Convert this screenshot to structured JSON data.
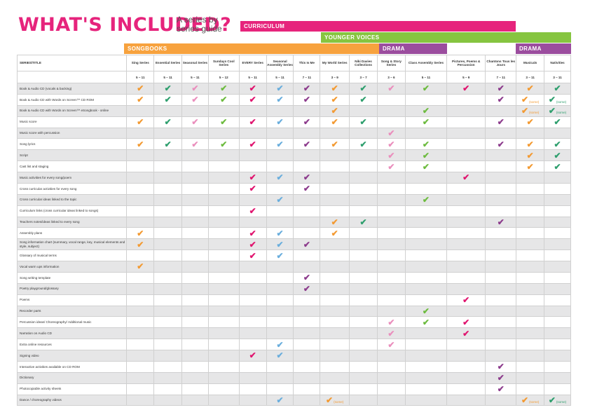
{
  "title": "WHAT'S INCLUDED?",
  "subtitle": "A series by series guide",
  "bands": {
    "curriculum": "CURRICULUM",
    "younger_voices": "YOUNGER VOICES",
    "songbooks": "SONGBOOKS",
    "drama1": "DRAMA",
    "drama2": "DRAMA"
  },
  "colors": {
    "pink": "#e6247c",
    "green": "#86c540",
    "orange": "#f7a23e",
    "purple": "#9b4d9e",
    "tick_orange": "#f39a32",
    "tick_green": "#2f9f6e",
    "tick_pink": "#ea8fbd",
    "tick_lightgreen": "#6dbb3f",
    "tick_magenta": "#e0156f",
    "tick_blue": "#6aaedd",
    "tick_purple": "#8c3b8c"
  },
  "tick_symbol": "✔",
  "series_title_header": "SERIES/TITLE",
  "columns": [
    {
      "name": "Sing Series",
      "age": "5 – 11",
      "tick": "tick_orange"
    },
    {
      "name": "Essential Series",
      "age": "5 – 11",
      "tick": "tick_green"
    },
    {
      "name": "Seasonal Series",
      "age": "5 – 11",
      "tick": "tick_pink"
    },
    {
      "name": "Sundays Cool Series",
      "age": "5 – 12",
      "tick": "tick_lightgreen"
    },
    {
      "name": "EVERY Series",
      "age": "5 – 11",
      "tick": "tick_magenta"
    },
    {
      "name": "Seasonal Assembly Series",
      "age": "5 – 11",
      "tick": "tick_blue"
    },
    {
      "name": "This Is Me",
      "age": "7 – 11",
      "tick": "tick_purple"
    },
    {
      "name": "My World Series",
      "age": "3 – 9",
      "tick": "tick_orange"
    },
    {
      "name": "Niki Davies Collections",
      "age": "3 – 7",
      "tick": "tick_green"
    },
    {
      "name": "Song & Story Series",
      "age": "3 – 6",
      "tick": "tick_pink"
    },
    {
      "name": "Class Assembly Series",
      "age": "5 – 11",
      "tick": "tick_lightgreen"
    },
    {
      "name": "Pictures, Poems & Percussion",
      "age": "5 – 9",
      "tick": "tick_magenta"
    },
    {
      "name": "Chantons Tous les Jours",
      "age": "7 – 11",
      "tick": "tick_purple"
    },
    {
      "name": "Musicals",
      "age": "3 – 11",
      "tick": "tick_orange"
    },
    {
      "name": "Nativities",
      "age": "3 – 11",
      "tick": "tick_green"
    }
  ],
  "some_label": "(some)",
  "rows": [
    {
      "label": "Book & Audio CD (vocals & backing)",
      "ticks": [
        0,
        1,
        2,
        3,
        4,
        5,
        6,
        7,
        8,
        9,
        10,
        11,
        12,
        13,
        14
      ],
      "some": []
    },
    {
      "label": "Book & Audio CD with Words on Screen™ CD ROM",
      "ticks": [
        0,
        1,
        2,
        3,
        4,
        5,
        6,
        7,
        8,
        12,
        13,
        14
      ],
      "some": [
        13,
        14
      ]
    },
    {
      "label": "Book & Audio CD with Words on Screen™ eSongbook - online",
      "ticks": [
        7,
        10,
        13,
        14
      ],
      "some": [
        13,
        14
      ]
    },
    {
      "label": "Music score",
      "ticks": [
        0,
        1,
        2,
        3,
        4,
        5,
        6,
        7,
        8,
        10,
        12,
        13,
        14
      ],
      "some": []
    },
    {
      "label": "Music score with percussion",
      "ticks": [
        9
      ],
      "some": []
    },
    {
      "label": "Song lyrics",
      "ticks": [
        0,
        1,
        2,
        3,
        4,
        5,
        6,
        7,
        8,
        9,
        10,
        12,
        13,
        14
      ],
      "some": []
    },
    {
      "label": "Script",
      "ticks": [
        9,
        10,
        13,
        14
      ],
      "some": []
    },
    {
      "label": "Cast list and staging",
      "ticks": [
        9,
        10,
        13,
        14
      ],
      "some": []
    },
    {
      "label": "Music activities for every song/poem",
      "ticks": [
        4,
        5,
        6,
        11
      ],
      "some": []
    },
    {
      "label": "Cross curricular activities for every song",
      "ticks": [
        4,
        6
      ],
      "some": []
    },
    {
      "label": "Cross curricular ideas linked to the topic",
      "ticks": [
        5,
        10
      ],
      "some": []
    },
    {
      "label": "Curriculum links (cross curricular ideas linked to songs)",
      "ticks": [
        4
      ],
      "some": []
    },
    {
      "label": "Teachers notes/ideas linked to every song",
      "ticks": [
        7,
        8,
        12
      ],
      "some": []
    },
    {
      "label": "Assembly plans",
      "ticks": [
        0,
        4,
        5,
        7
      ],
      "some": []
    },
    {
      "label": "Song information chart (summary, vocal range, key, musical elements and style, subject)",
      "ticks": [
        0,
        4,
        5,
        6
      ],
      "some": []
    },
    {
      "label": "Glossary of musical terms",
      "ticks": [
        4,
        5
      ],
      "some": []
    },
    {
      "label": "Vocal warm ups information",
      "ticks": [
        0
      ],
      "some": []
    },
    {
      "label": "Song writing template",
      "ticks": [
        6
      ],
      "some": []
    },
    {
      "label": "Poetry playground/glossary",
      "ticks": [
        6
      ],
      "some": []
    },
    {
      "label": "Poems",
      "ticks": [
        11
      ],
      "some": []
    },
    {
      "label": "Recorder parts",
      "ticks": [
        10
      ],
      "some": []
    },
    {
      "label": "Percussion ideas/ Choreography/ Additional music",
      "ticks": [
        9,
        10,
        11
      ],
      "some": []
    },
    {
      "label": "Narration on Audio CD",
      "ticks": [
        9,
        11
      ],
      "some": []
    },
    {
      "label": "Extra online resources",
      "ticks": [
        5,
        9
      ],
      "some": []
    },
    {
      "label": "Signing video",
      "ticks": [
        4,
        5
      ],
      "some": []
    },
    {
      "label": "Interactive activities available on CD ROM",
      "ticks": [
        12
      ],
      "some": []
    },
    {
      "label": "Dictionary",
      "ticks": [
        12
      ],
      "some": []
    },
    {
      "label": "Photocopiable activity sheets",
      "ticks": [
        12
      ],
      "some": []
    },
    {
      "label": "Dance / choreography videos",
      "ticks": [
        5,
        7,
        13,
        14
      ],
      "some": [
        7,
        13,
        14
      ]
    }
  ]
}
